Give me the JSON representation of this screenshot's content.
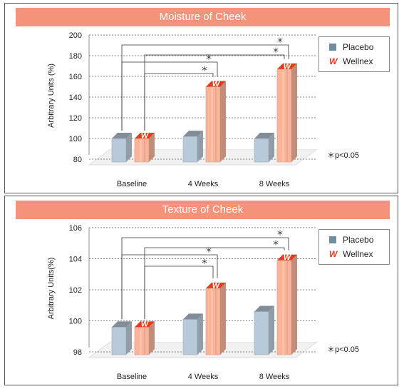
{
  "legend": {
    "placebo": "Placebo",
    "wellnex": "Wellnex",
    "wellnex_icon": "W"
  },
  "significance_note": "＊p<0.05",
  "significance_mark": "＊",
  "colors": {
    "title_bg": "#f4937a",
    "placebo": "#b8c9d9",
    "wellnex": "#f9b49a",
    "wellnex_logo": "#e43b1c"
  },
  "chart_data": [
    {
      "type": "bar",
      "title": "Moisture of Cheek",
      "ylabel": "Arbitrary Units (%)",
      "xlabel": "",
      "categories": [
        "Baseline",
        "4 Weeks",
        "8 Weeks"
      ],
      "ylim": [
        80,
        200
      ],
      "yticks": [
        80,
        100,
        120,
        140,
        160,
        180,
        200
      ],
      "series": [
        {
          "name": "Placebo",
          "values": [
            100,
            102,
            100
          ]
        },
        {
          "name": "Wellnex",
          "values": [
            100,
            150,
            167
          ]
        }
      ],
      "significance": [
        {
          "from": "Baseline Placebo",
          "to": "8 Weeks Wellnex",
          "label": "＊"
        },
        {
          "from": "Baseline Wellnex",
          "to": "8 Weeks Wellnex",
          "label": "＊"
        },
        {
          "from": "Baseline Placebo",
          "to": "4 Weeks Wellnex",
          "label": "＊"
        },
        {
          "from": "Baseline Wellnex",
          "to": "4 Weeks Wellnex",
          "label": "＊"
        }
      ],
      "grid": true,
      "legend_position": "top-right"
    },
    {
      "type": "bar",
      "title": "Texture of Cheek",
      "ylabel": "Arbitrary Units(%)",
      "xlabel": "",
      "categories": [
        "Baseline",
        "4 Weeks",
        "8 Weeks"
      ],
      "ylim": [
        98,
        106
      ],
      "yticks": [
        98,
        100,
        102,
        104,
        106
      ],
      "series": [
        {
          "name": "Placebo",
          "values": [
            99.6,
            100.1,
            100.6
          ]
        },
        {
          "name": "Wellnex",
          "values": [
            99.6,
            102.1,
            103.9
          ]
        }
      ],
      "significance": [
        {
          "from": "Baseline Placebo",
          "to": "8 Weeks Wellnex",
          "label": "＊"
        },
        {
          "from": "Baseline Wellnex",
          "to": "8 Weeks Wellnex",
          "label": "＊"
        },
        {
          "from": "Baseline Placebo",
          "to": "4 Weeks Wellnex",
          "label": "＊"
        },
        {
          "from": "Baseline Wellnex",
          "to": "4 Weeks Wellnex",
          "label": "＊"
        }
      ],
      "grid": true,
      "legend_position": "top-right"
    }
  ]
}
